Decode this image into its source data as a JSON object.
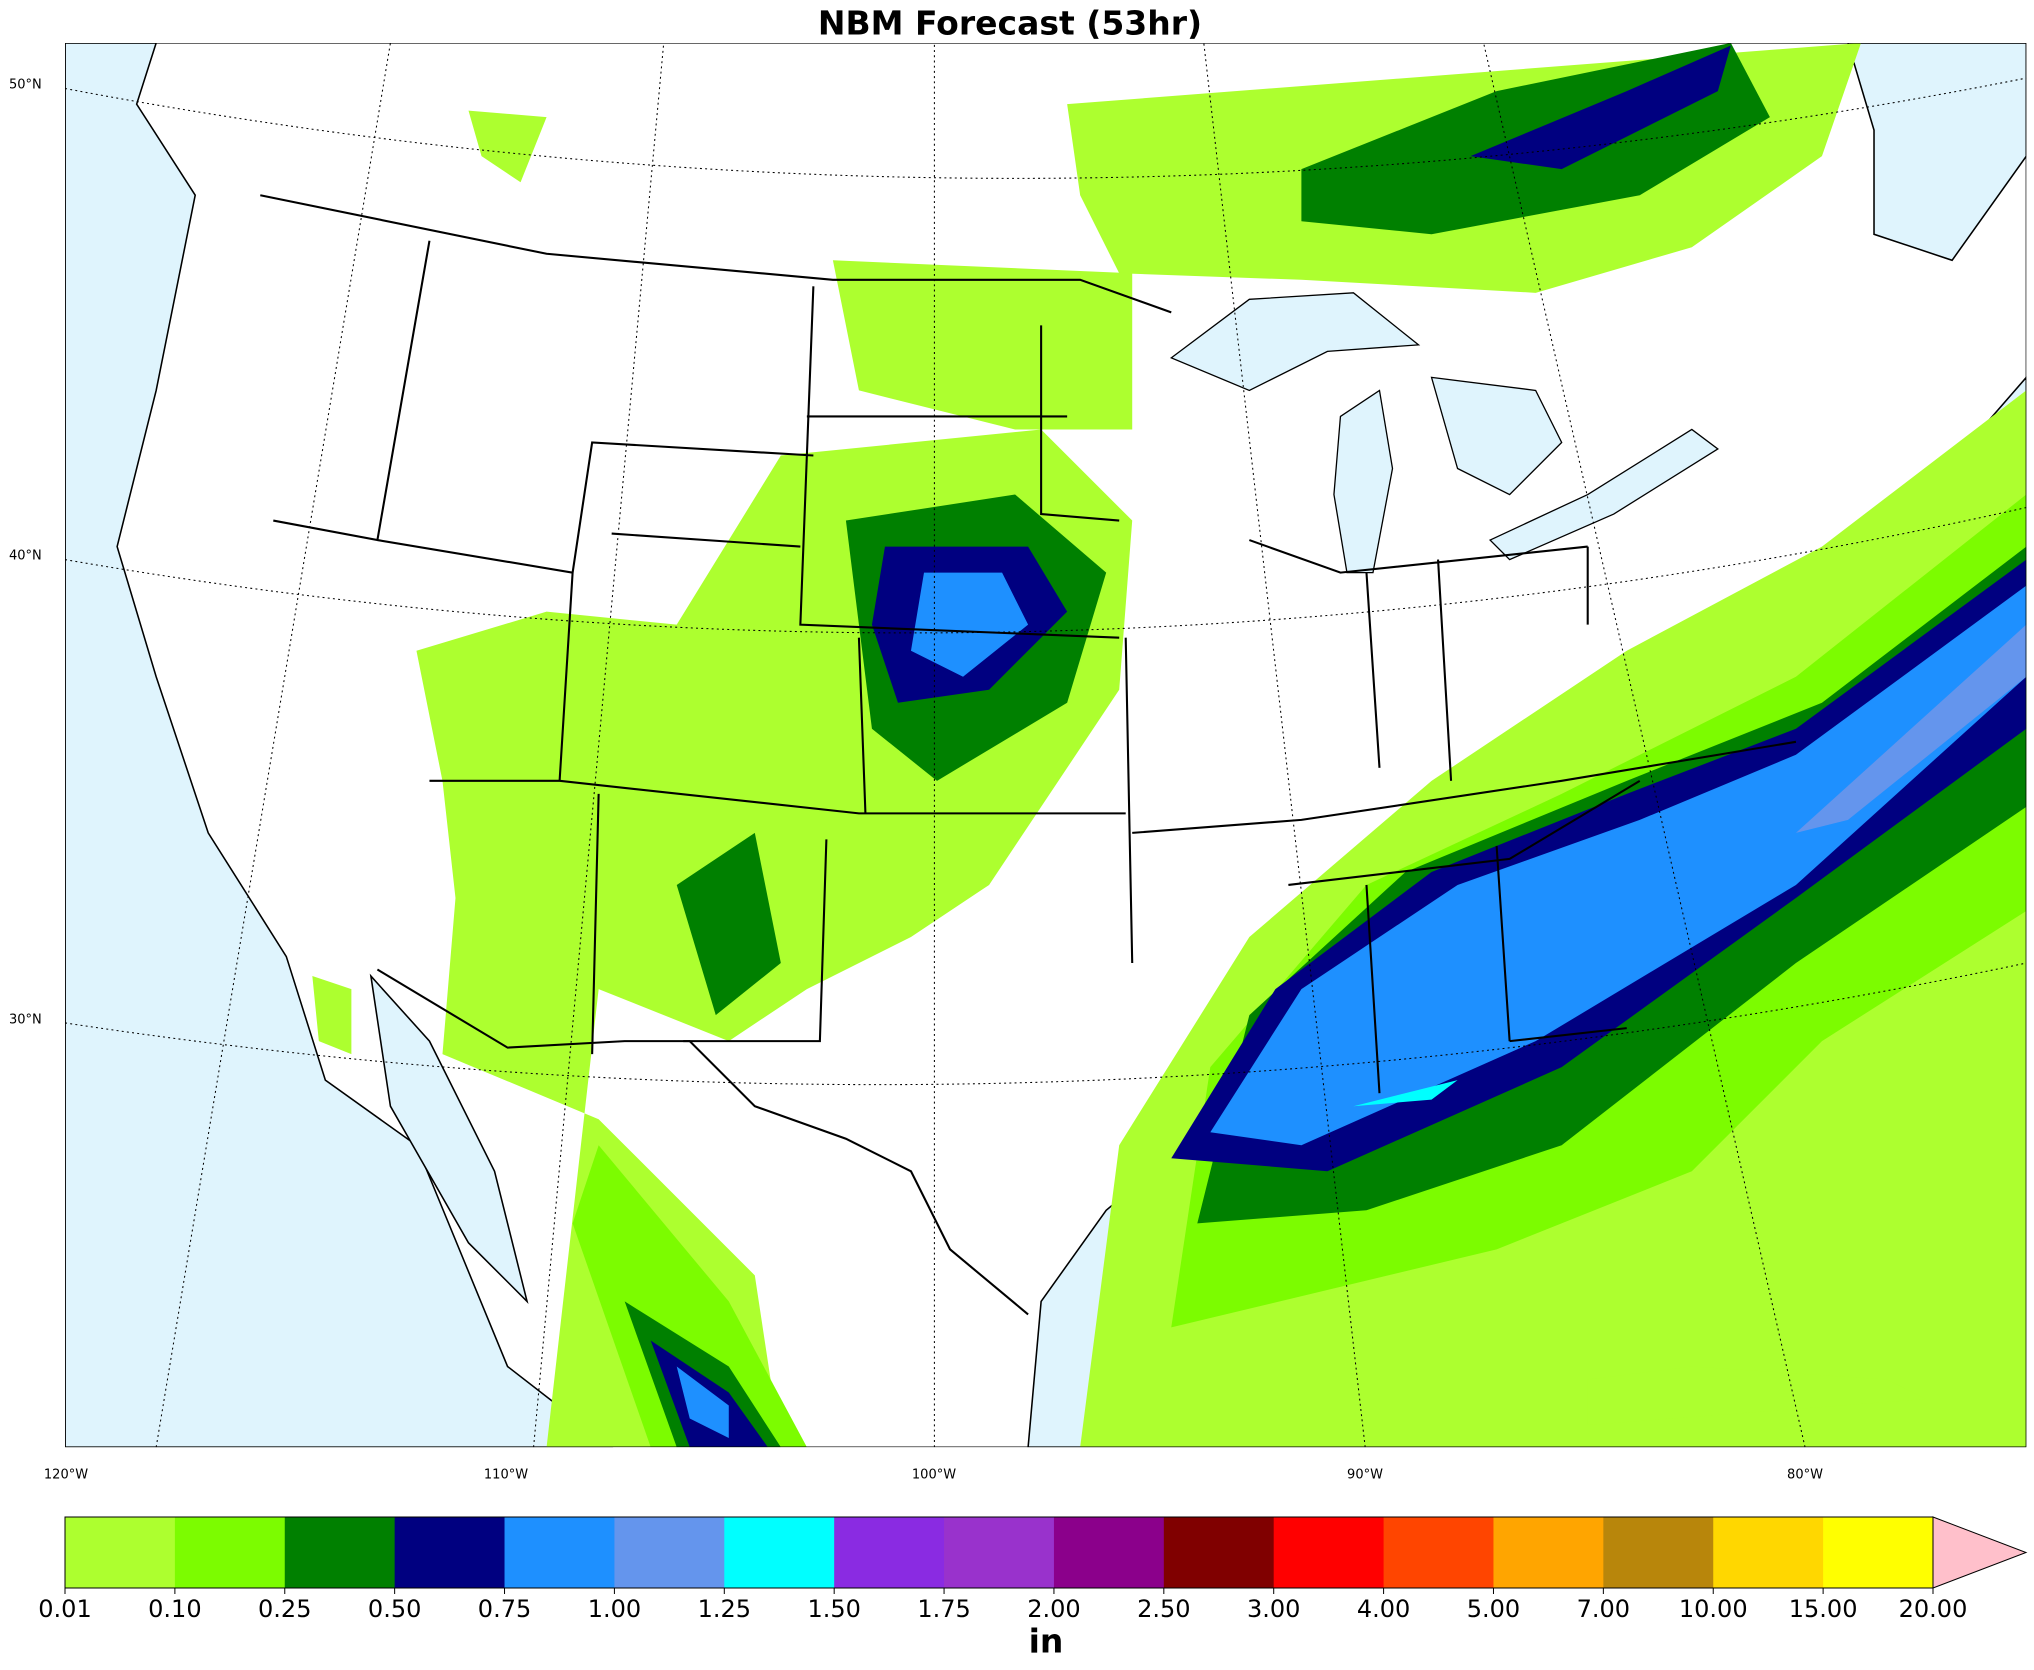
{
  "title": "NBM Forecast (53hr)",
  "map": {
    "lat_labels": [
      "50°N",
      "40°N",
      "30°N"
    ],
    "lon_labels": [
      "120°W",
      "110°W",
      "100°W",
      "90°W",
      "80°W"
    ]
  },
  "colorbar": {
    "ticks": [
      0.01,
      {
        "value": 0.1,
        "label": "0.10"
      },
      0.25,
      {
        "value": 0.5,
        "label": "0.50"
      },
      0.75,
      {
        "value": 1,
        "label": "1.00"
      },
      1.25,
      {
        "value": 1.5,
        "label": "1.50"
      },
      1.75,
      {
        "value": 2,
        "label": "2.00"
      },
      {
        "value": 2.5,
        "label": "2.50"
      },
      {
        "value": 3,
        "label": "3.00"
      },
      {
        "value": 4,
        "label": "4.00"
      },
      {
        "value": 5,
        "label": "5.00"
      },
      {
        "value": 7,
        "label": "7.00"
      },
      {
        "value": 10,
        "label": "10.00"
      },
      {
        "value": 15,
        "label": "15.00"
      },
      {
        "value": 20,
        "label": "20.00"
      }
    ],
    "colors": [
      "#adff2f",
      "#7cfc00",
      "#008000",
      "#000080",
      "#1e90ff",
      "#6495ed",
      "#00ffff",
      "#8a2be2",
      "#9932cc",
      "#8b008b",
      "#800000",
      "#ff0000",
      "#ff4500",
      "#ffa500",
      "#b8860b",
      "#ffd700",
      "#ffff00"
    ],
    "extend_color": "#ffc0cb",
    "unit": "in"
  }
}
